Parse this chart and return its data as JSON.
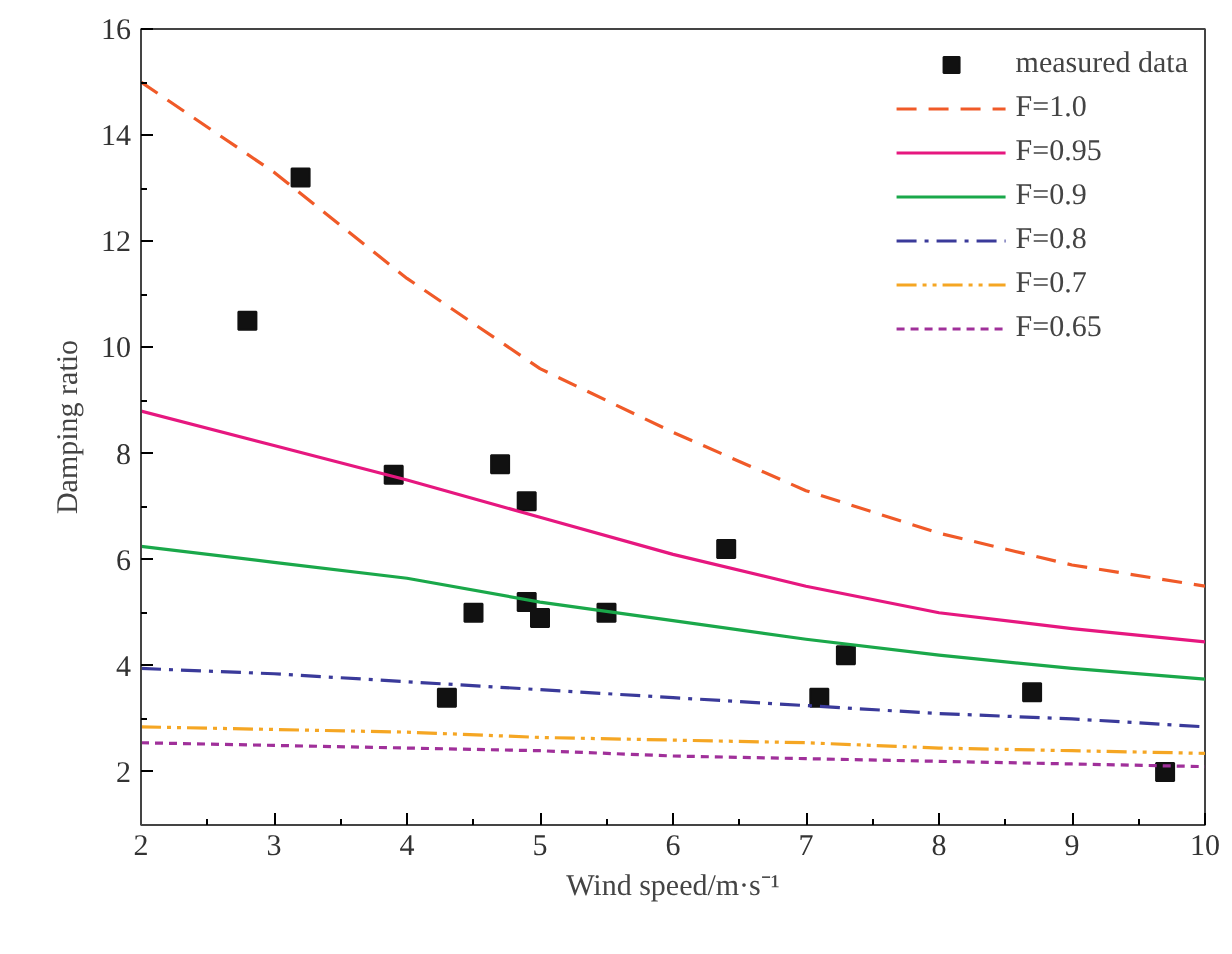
{
  "chart_data": {
    "type": "line",
    "xlabel": "Wind speed/m·s⁻¹",
    "ylabel": "Damping ratio",
    "xlim": [
      2,
      10
    ],
    "ylim": [
      1,
      16
    ],
    "xticks": [
      2,
      3,
      4,
      5,
      6,
      7,
      8,
      9,
      10,
      {
        "value": 2.5,
        "label": null
      },
      {
        "value": 3.5,
        "label": null
      },
      {
        "value": 4.5,
        "label": null
      },
      {
        "value": 5.5,
        "label": null
      },
      {
        "value": 6.5,
        "label": null
      },
      {
        "value": 7.5,
        "label": null
      },
      {
        "value": 8.5,
        "label": null
      },
      {
        "value": 9.5,
        "label": null
      }
    ],
    "yticks": [
      2,
      4,
      6,
      8,
      10,
      12,
      14,
      16,
      {
        "value": 3,
        "label": null
      },
      {
        "value": 5,
        "label": null
      },
      {
        "value": 7,
        "label": null
      },
      {
        "value": 9,
        "label": null
      },
      {
        "value": 11,
        "label": null
      },
      {
        "value": 13,
        "label": null
      },
      {
        "value": 15,
        "label": null
      }
    ],
    "grid": false,
    "legend": "top right",
    "series": [
      {
        "name": "measured data",
        "type": "scatter",
        "marker": "square",
        "color": "#111111",
        "x": [
          2.8,
          3.2,
          3.9,
          4.7,
          4.9,
          4.5,
          4.9,
          5.0,
          5.5,
          4.3,
          6.4,
          7.3,
          7.1,
          8.7,
          9.7
        ],
        "values": [
          10.5,
          13.2,
          7.6,
          7.8,
          7.1,
          5.0,
          5.2,
          4.9,
          5.0,
          3.4,
          6.2,
          4.2,
          3.4,
          3.5,
          2.0
        ]
      },
      {
        "name": "F=1.0",
        "line_style": "dashed",
        "color": "#f05a28",
        "x": [
          2,
          3,
          4,
          5,
          6,
          7,
          8,
          9,
          10
        ],
        "values": [
          15.0,
          13.3,
          11.3,
          9.6,
          8.4,
          7.3,
          6.5,
          5.9,
          5.5
        ]
      },
      {
        "name": "F=0.95",
        "line_style": "solid",
        "color": "#e6177f",
        "x": [
          2,
          3,
          4,
          5,
          6,
          7,
          8,
          9,
          10
        ],
        "values": [
          8.8,
          8.15,
          7.5,
          6.8,
          6.1,
          5.5,
          5.0,
          4.7,
          4.45
        ]
      },
      {
        "name": "F=0.9",
        "line_style": "solid",
        "color": "#1aa84a",
        "x": [
          2,
          3,
          4,
          5,
          6,
          7,
          8,
          9,
          10
        ],
        "values": [
          6.25,
          5.95,
          5.65,
          5.2,
          4.85,
          4.5,
          4.2,
          3.95,
          3.75
        ]
      },
      {
        "name": "F=0.8",
        "line_style": "dashdot",
        "color": "#3a3a9a",
        "x": [
          2,
          3,
          4,
          5,
          6,
          7,
          8,
          9,
          10
        ],
        "values": [
          3.95,
          3.85,
          3.7,
          3.55,
          3.4,
          3.25,
          3.1,
          3.0,
          2.85
        ]
      },
      {
        "name": "F=0.7",
        "line_style": "dashdotdot",
        "color": "#f5a623",
        "x": [
          2,
          3,
          4,
          5,
          6,
          7,
          8,
          9,
          10
        ],
        "values": [
          2.85,
          2.8,
          2.75,
          2.65,
          2.6,
          2.55,
          2.45,
          2.4,
          2.35
        ]
      },
      {
        "name": "F=0.65",
        "line_style": "dotted",
        "color": "#a0309a",
        "x": [
          2,
          3,
          4,
          5,
          6,
          7,
          8,
          9,
          10
        ],
        "values": [
          2.55,
          2.5,
          2.45,
          2.4,
          2.3,
          2.25,
          2.2,
          2.15,
          2.1
        ]
      }
    ]
  }
}
